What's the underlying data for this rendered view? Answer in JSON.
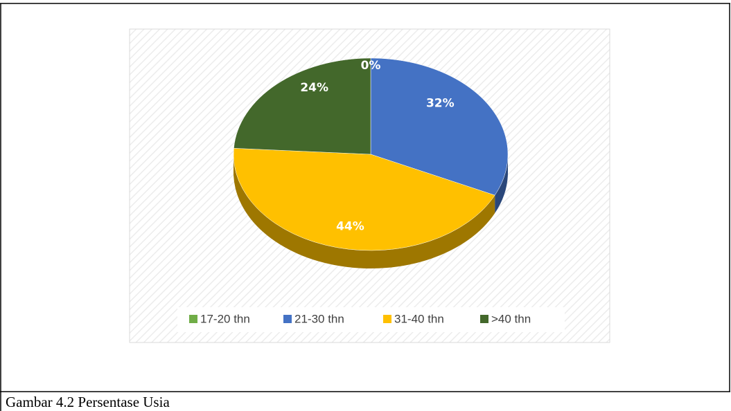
{
  "chart_data": {
    "type": "pie",
    "categories": [
      "17-20 thn",
      "21-30 thn",
      "31-40 thn",
      ">40 thn"
    ],
    "values": [
      0,
      32,
      44,
      24
    ],
    "value_labels": [
      "0%",
      "32%",
      "44%",
      "24%"
    ],
    "colors": [
      "#70ad47",
      "#4472c4",
      "#ffc000",
      "#43682b"
    ],
    "legend": "bottom"
  },
  "caption": "Gambar 4.2 Persentase Usia"
}
